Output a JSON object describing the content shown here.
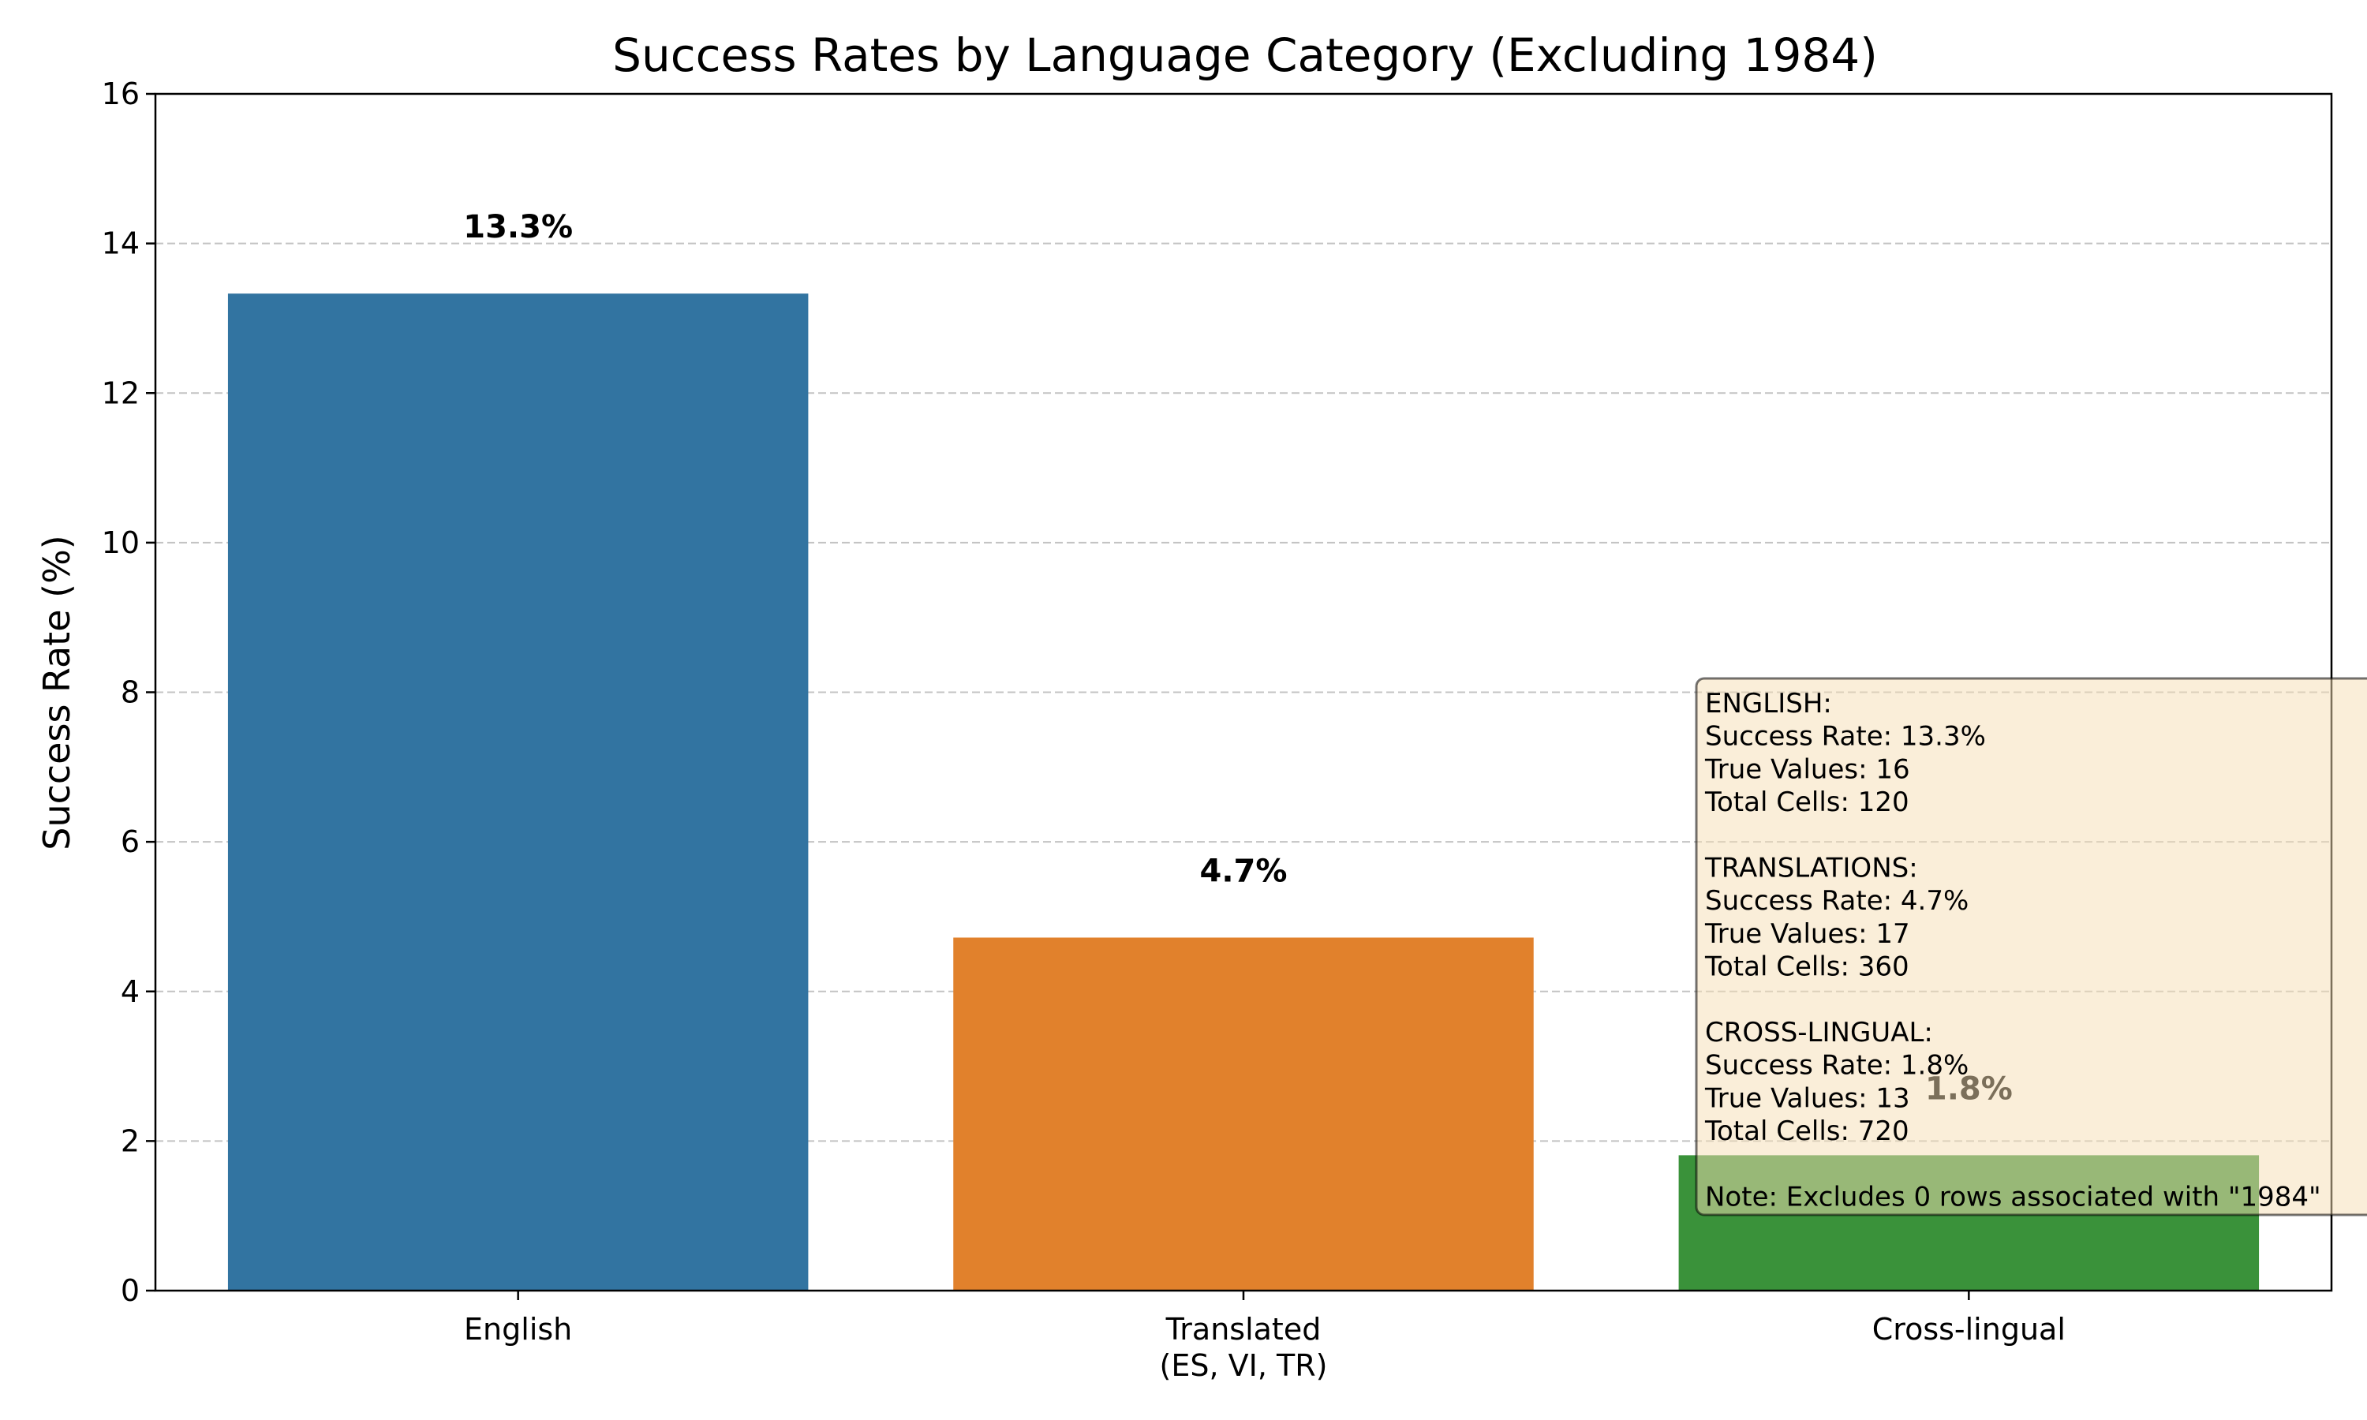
{
  "chart_data": {
    "type": "bar",
    "title": "Success Rates by Language Category (Excluding 1984)",
    "xlabel": "",
    "ylabel": "Success Rate (%)",
    "ylim": [
      0,
      16
    ],
    "yticks": [
      0,
      2,
      4,
      6,
      8,
      10,
      12,
      14,
      16
    ],
    "grid": "y-dashed",
    "categories": [
      "English",
      "Translated\n(ES, VI, TR)",
      "Cross-lingual"
    ],
    "values": [
      13.33,
      4.72,
      1.81
    ],
    "value_labels": [
      "13.3%",
      "4.7%",
      "1.8%"
    ],
    "colors": [
      "#3274a1",
      "#e1812c",
      "#3a923a"
    ],
    "info_box": {
      "lines": [
        "ENGLISH:",
        "  Success Rate: 13.3%",
        "  True Values: 16",
        "  Total Cells: 120",
        "",
        "TRANSLATIONS:",
        "  Success Rate: 4.7%",
        "  True Values: 17",
        "  Total Cells: 360",
        "",
        "CROSS-LINGUAL:",
        "  Success Rate: 1.8%",
        "  True Values: 13",
        "  Total Cells: 720",
        "",
        "Note: Excludes 0 rows associated with \"1984\""
      ]
    }
  }
}
